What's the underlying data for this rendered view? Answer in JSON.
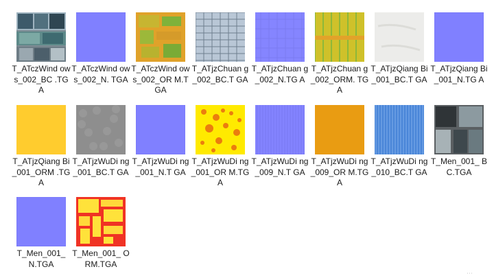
{
  "files": [
    {
      "name": "T_ATczWindows_002_BC.TGA",
      "label": "T_ATczWind ows_002_BC .TGA",
      "thumb": "windows-bc"
    },
    {
      "name": "T_ATczWindows_002_N.TGA",
      "label": "T_ATczWind ows_002_N. TGA",
      "thumb": "normal"
    },
    {
      "name": "T_ATczWindows_002_ORM.TGA",
      "label": "T_ATczWind ows_002_OR M.TGA",
      "thumb": "orm-green"
    },
    {
      "name": "T_ATjzChuang_002_BC.TGA",
      "label": "T_ATjzChuan g_002_BC.T GA",
      "thumb": "chuang-bc"
    },
    {
      "name": "T_ATjzChuang_002_N.TGA",
      "label": "T_ATjzChuan g_002_N.TG A",
      "thumb": "normal-grid"
    },
    {
      "name": "T_ATjzChuang_002_ORM.TGA",
      "label": "T_ATjzChuan g_002_ORM. TGA",
      "thumb": "orm-yellowgreen"
    },
    {
      "name": "T_ATjzQiangBi_001_BC.TGA",
      "label": "T_ATjzQiang Bi_001_BC.T GA",
      "thumb": "white-wall"
    },
    {
      "name": "T_ATjzQiangBi_001_N.TGA",
      "label": "T_ATjzQiang Bi_001_N.TG A",
      "thumb": "normal"
    },
    {
      "name": "T_ATjzQiangBi_001_ORM.TGA",
      "label": "T_ATjzQiang Bi_001_ORM .TGA",
      "thumb": "yellow-flat"
    },
    {
      "name": "T_ATjzWuDing_001_BC.TGA",
      "label": "T_ATjzWuDi ng_001_BC.T GA",
      "thumb": "gray-concrete"
    },
    {
      "name": "T_ATjzWuDing_001_N.TGA",
      "label": "T_ATjzWuDi ng_001_N.T GA",
      "thumb": "normal"
    },
    {
      "name": "T_ATjzWuDing_001_ORM.TGA",
      "label": "T_ATjzWuDi ng_001_OR M.TGA",
      "thumb": "yellow-red-spots"
    },
    {
      "name": "T_ATjzWuDing_009_N.TGA",
      "label": "T_ATjzWuDi ng_009_N.T GA",
      "thumb": "normal-stripes"
    },
    {
      "name": "T_ATjzWuDing_009_ORM.TGA",
      "label": "T_ATjzWuDi ng_009_OR M.TGA",
      "thumb": "orange-flat"
    },
    {
      "name": "T_ATjzWuDing_010_BC.TGA",
      "label": "T_ATjzWuDi ng_010_BC.T GA",
      "thumb": "blue-stripes"
    },
    {
      "name": "T_Men_001_BC.TGA",
      "label": "T_Men_001_ BC.TGA",
      "thumb": "men-bc"
    },
    {
      "name": "T_Men_001_N.TGA",
      "label": "T_Men_001_ N.TGA",
      "thumb": "normal"
    },
    {
      "name": "T_Men_001_ORM.TGA",
      "label": "T_Men_001_ ORM.TGA",
      "thumb": "red-yellow-blocks"
    }
  ]
}
